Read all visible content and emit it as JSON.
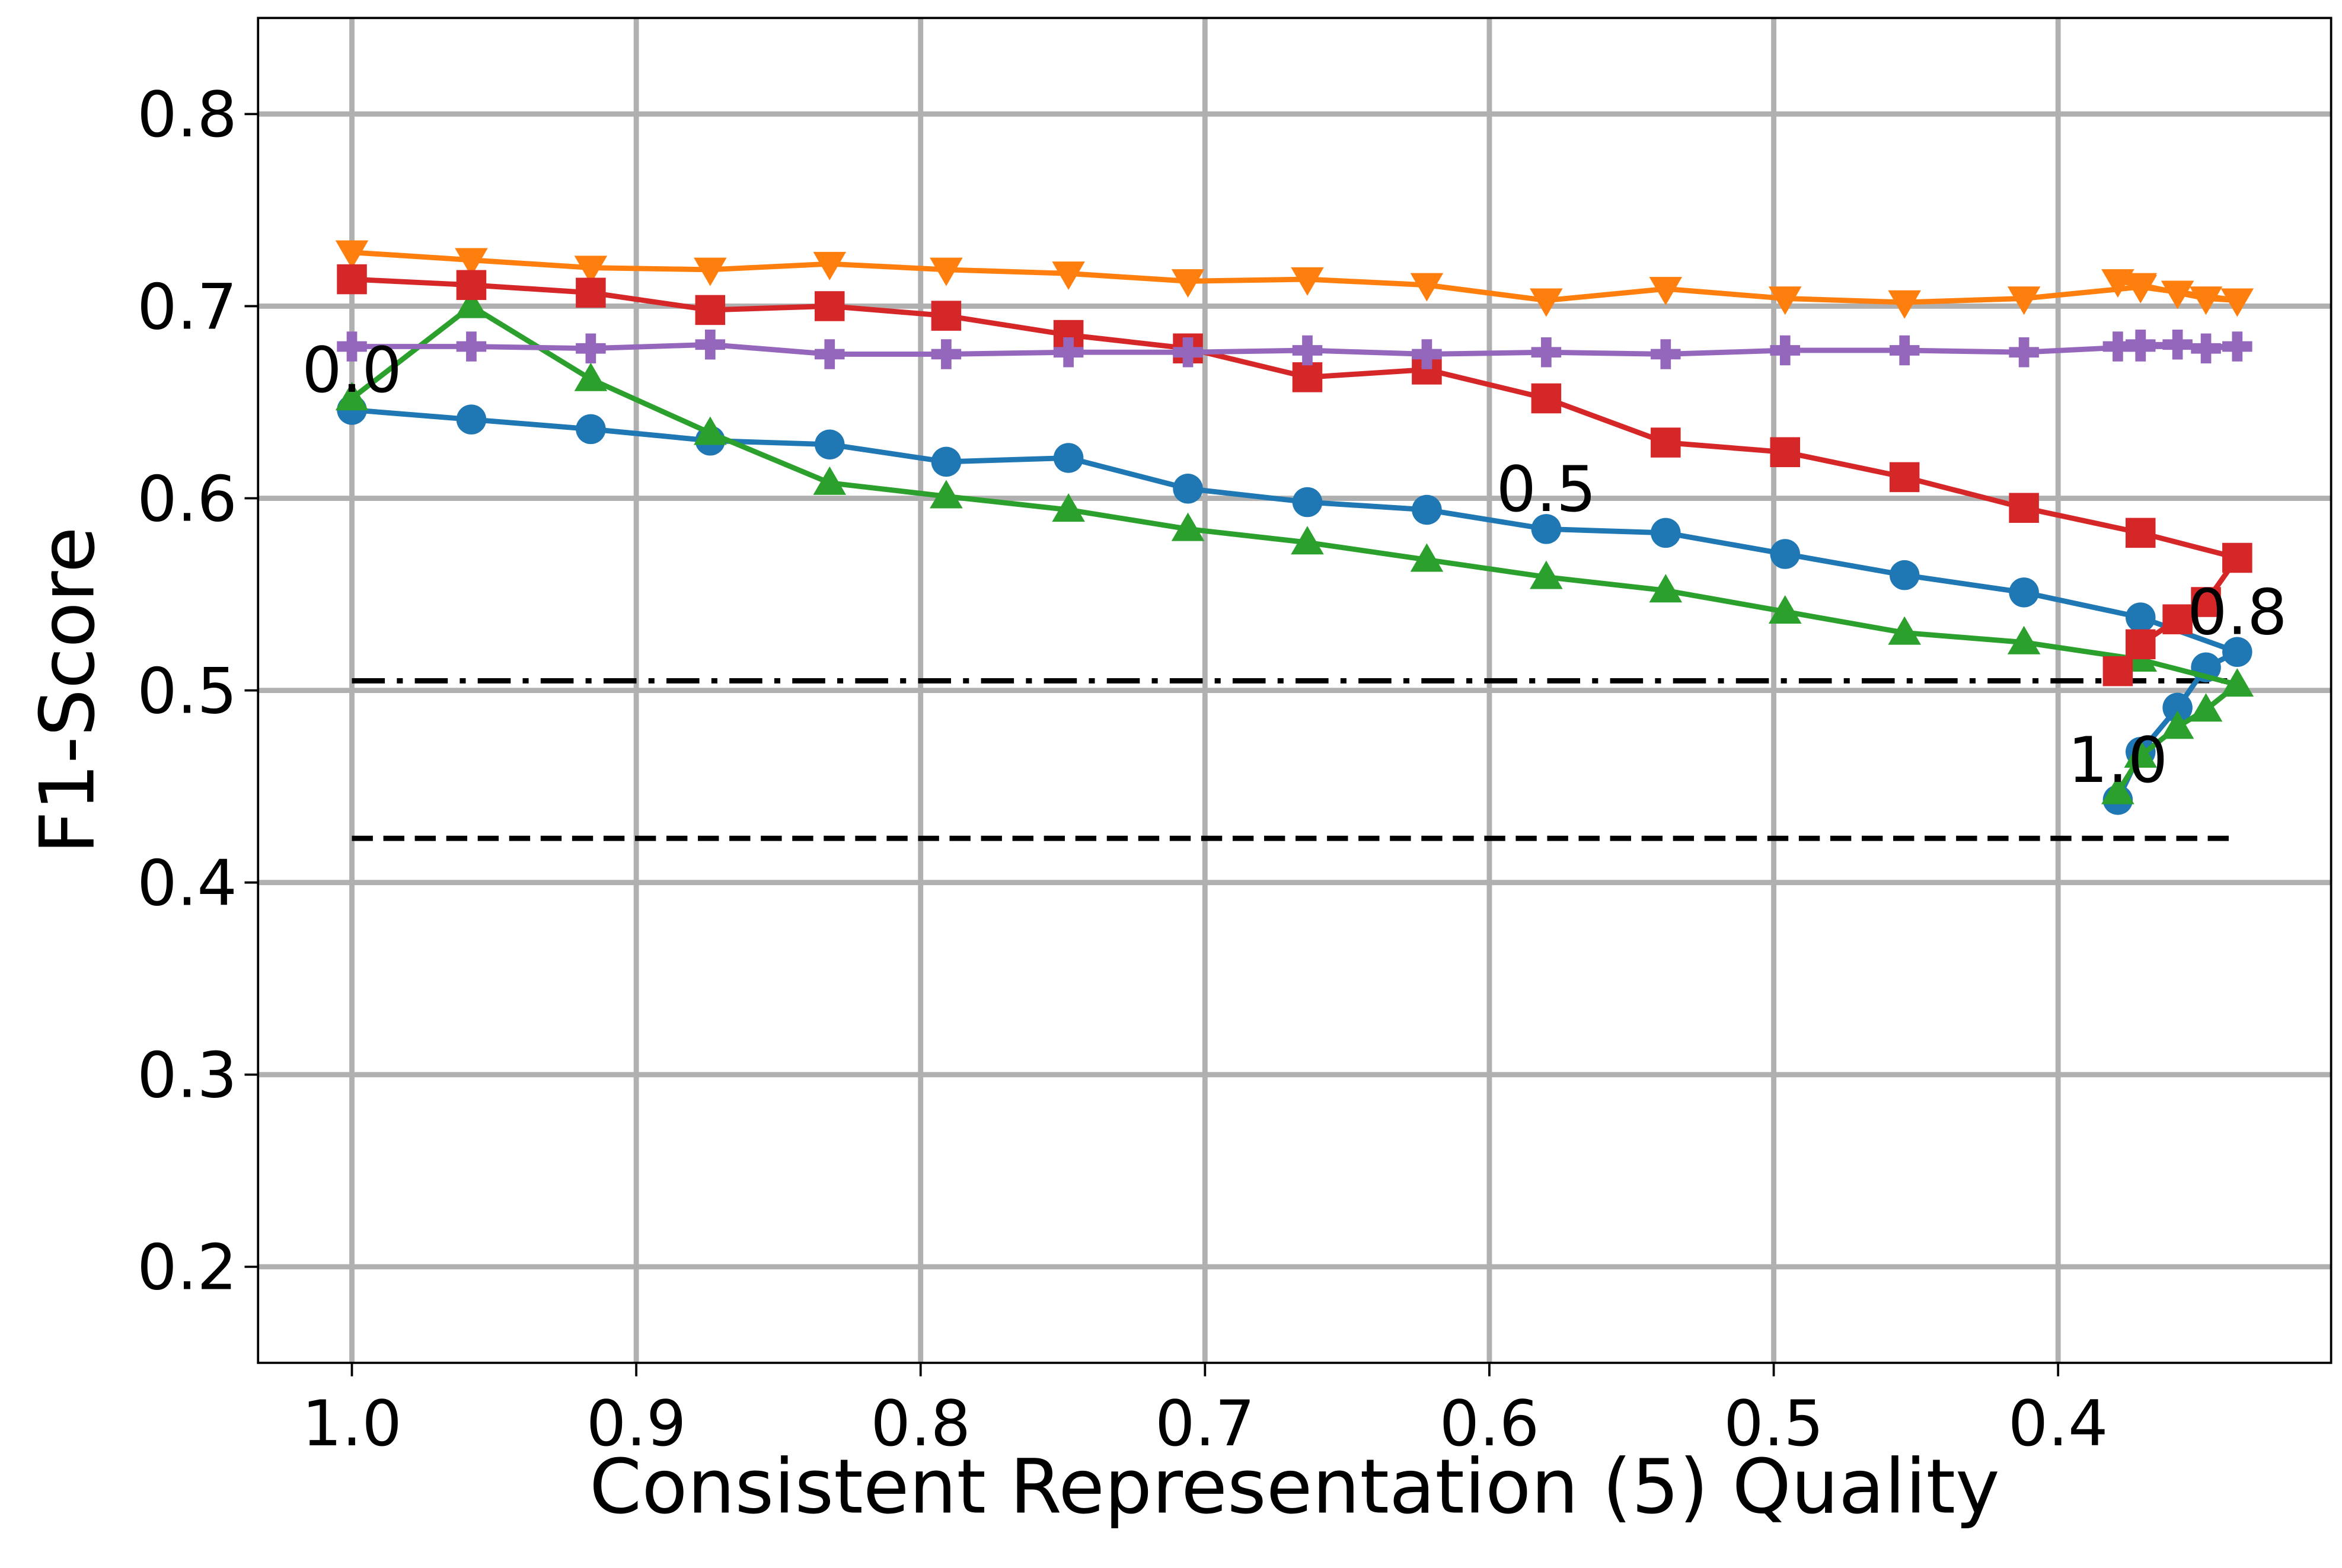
{
  "chart_data": {
    "type": "line",
    "xlabel": "Consistent Representation (5) Quality",
    "ylabel": "F1-Score",
    "xlim": [
      1.033,
      0.304
    ],
    "ylim": [
      0.15,
      0.85
    ],
    "xticks": [
      {
        "value": 1.0,
        "label": "1.0"
      },
      0.9,
      0.8,
      0.7,
      0.6,
      0.5,
      0.4
    ],
    "yticks": [
      0.2,
      0.3,
      0.4,
      0.5,
      0.6,
      0.7,
      0.8
    ],
    "grid": true,
    "x": [
      1.0,
      0.958,
      0.916,
      0.874,
      0.832,
      0.791,
      0.748,
      0.706,
      0.664,
      0.622,
      0.58,
      0.538,
      0.496,
      0.454,
      0.412,
      0.371,
      0.337,
      0.348,
      0.358,
      0.371,
      0.379
    ],
    "series": [
      {
        "color": "#1f77b4",
        "marker": "circle",
        "values": [
          0.646,
          0.641,
          0.636,
          0.63,
          0.628,
          0.619,
          0.621,
          0.605,
          0.598,
          0.594,
          0.584,
          0.582,
          0.571,
          0.56,
          0.551,
          0.538,
          0.52,
          0.512,
          0.491,
          0.468,
          0.443
        ]
      },
      {
        "color": "#ff7f0e",
        "marker": "triangle-down",
        "values": [
          0.728,
          0.724,
          0.72,
          0.719,
          0.722,
          0.719,
          0.717,
          0.713,
          0.714,
          0.711,
          0.703,
          0.709,
          0.704,
          0.702,
          0.704,
          0.71,
          0.703,
          0.704,
          0.707,
          0.711,
          0.713
        ]
      },
      {
        "color": "#2ca02c",
        "marker": "triangle-up",
        "values": [
          0.652,
          0.7,
          0.662,
          0.634,
          0.608,
          0.601,
          0.594,
          0.584,
          0.577,
          0.568,
          0.559,
          0.552,
          0.541,
          0.53,
          0.525,
          0.516,
          0.503,
          0.49,
          0.481,
          0.466,
          0.447
        ]
      },
      {
        "color": "#d62728",
        "marker": "square",
        "values": [
          0.714,
          0.711,
          0.707,
          0.698,
          0.7,
          0.695,
          0.685,
          0.678,
          0.663,
          0.667,
          0.652,
          0.629,
          0.624,
          0.611,
          0.595,
          0.582,
          0.569,
          0.546,
          0.537,
          0.524,
          0.51
        ]
      },
      {
        "color": "#9467bd",
        "marker": "plus",
        "values": [
          0.679,
          0.679,
          0.678,
          0.68,
          0.675,
          0.675,
          0.676,
          0.676,
          0.677,
          0.675,
          0.676,
          0.675,
          0.677,
          0.677,
          0.676,
          0.679,
          0.679,
          0.678,
          0.68,
          0.68,
          0.679
        ]
      }
    ],
    "reference_lines": [
      {
        "value": 0.505,
        "style": "dashdot",
        "color": "#000000"
      },
      {
        "value": 0.423,
        "style": "dashed",
        "color": "#000000"
      }
    ],
    "annotations": [
      {
        "text": "0.0",
        "x": 1.0,
        "y": 0.646
      },
      {
        "text": "0.5",
        "x": 0.58,
        "y": 0.584
      },
      {
        "text": "0.8",
        "x": 0.337,
        "y": 0.52
      },
      {
        "text": "1.0",
        "x": 0.379,
        "y": 0.443
      }
    ]
  }
}
